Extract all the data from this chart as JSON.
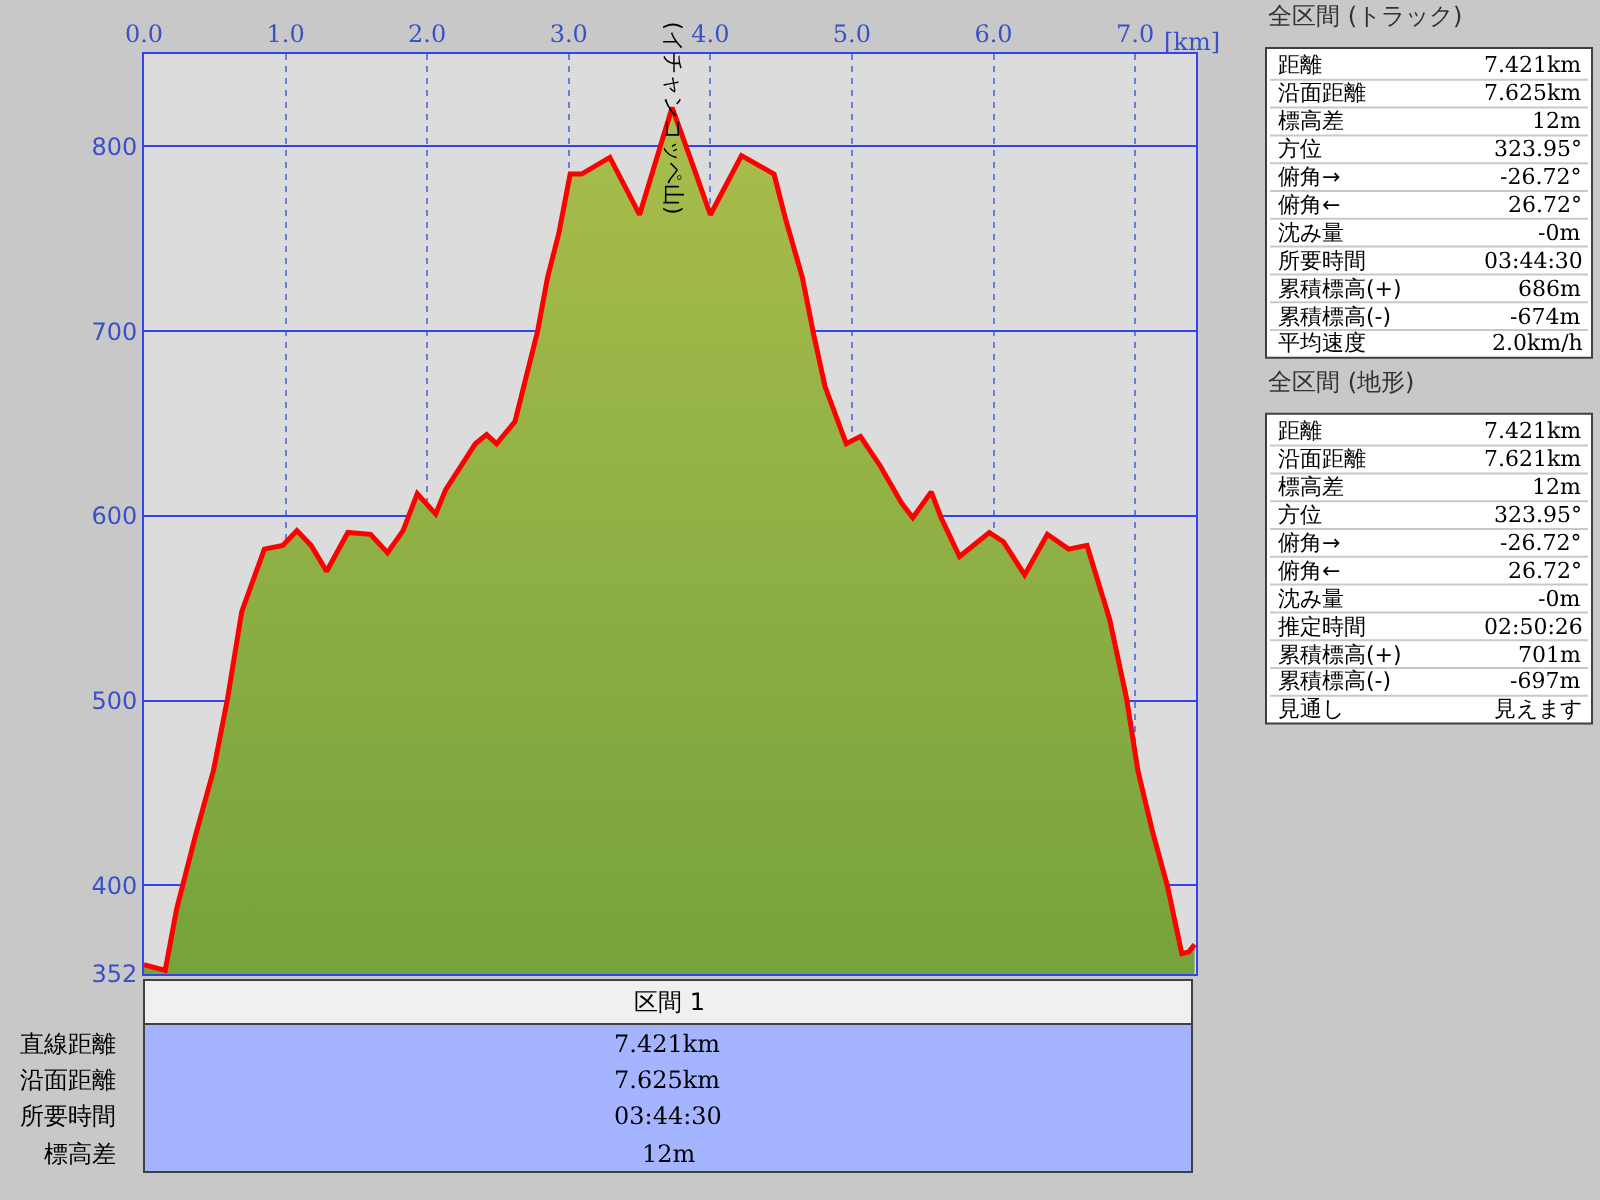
{
  "chart_data": [
    {
      "type": "area",
      "xlabel": "[km]",
      "x": [
        0,
        0.15,
        0.23,
        0.36,
        0.49,
        0.59,
        0.69,
        0.85,
        0.98,
        1.08,
        1.18,
        1.29,
        1.44,
        1.6,
        1.72,
        1.83,
        1.93,
        2.06,
        2.13,
        2.34,
        2.42,
        2.49,
        2.62,
        2.78,
        2.85,
        2.93,
        3.01,
        3.09,
        3.29,
        3.5,
        3.73,
        3.88,
        4.0,
        4.22,
        4.45,
        4.53,
        4.65,
        4.73,
        4.81,
        4.96,
        5.06,
        5.2,
        5.35,
        5.43,
        5.56,
        5.63,
        5.76,
        5.97,
        6.07,
        6.22,
        6.38,
        6.53,
        6.66,
        6.82,
        6.94,
        7.02,
        7.12,
        7.23,
        7.33,
        7.38,
        7.42
      ],
      "series": [
        {
          "color": "#ff0000",
          "values": [
            357,
            354,
            387,
            426,
            462,
            501,
            548,
            582,
            584,
            592,
            584,
            570,
            591,
            590,
            580,
            592,
            612,
            601,
            614,
            639,
            644,
            639,
            651,
            700,
            729,
            753,
            785,
            785,
            794,
            763,
            821,
            789,
            763,
            795,
            785,
            761,
            729,
            698,
            670,
            639,
            643,
            627,
            607,
            599,
            613,
            599,
            578,
            591,
            586,
            568,
            590,
            582,
            584,
            544,
            501,
            462,
            430,
            399,
            363,
            364,
            368
          ]
        }
      ],
      "xlim": [
        0,
        7.43
      ],
      "xticks": [
        {
          "value": 0,
          "label": "0.0"
        },
        {
          "value": 1,
          "label": "1.0"
        },
        {
          "value": 2,
          "label": "2.0"
        },
        {
          "value": 3,
          "label": "3.0"
        },
        {
          "value": 4,
          "label": "4.0"
        },
        {
          "value": 5,
          "label": "5.0"
        },
        {
          "value": 6,
          "label": "6.0"
        },
        {
          "value": 7,
          "label": "7.0"
        }
      ],
      "ylim": [
        352,
        850
      ],
      "yticks": [
        352,
        400,
        500,
        600,
        700,
        800
      ],
      "grid": true,
      "annotations": [
        {
          "text": "(イチャンコッペ山)",
          "x": 3.73,
          "y": 821
        }
      ]
    },
    {
      "type": "other",
      "title": "全区間 (トラック)",
      "annotations": [
        "距離",
        "7.421km",
        "沿面距離",
        "7.625km",
        "標高差",
        "12m",
        "方位",
        "323.95°",
        "俯角→",
        "-26.72°",
        "俯角←",
        "26.72°",
        "沈み量",
        "-0m",
        "所要時間",
        "03:44:30",
        "累積標高(+)",
        "686m",
        "累積標高(-)",
        "-674m",
        "平均速度",
        "2.0km/h"
      ]
    },
    {
      "type": "other",
      "title": "全区間 (地形)",
      "annotations": [
        "距離",
        "7.421km",
        "沿面距離",
        "7.621km",
        "標高差",
        "12m",
        "方位",
        "323.95°",
        "俯角→",
        "-26.72°",
        "俯角←",
        "26.72°",
        "沈み量",
        "-0m",
        "推定時間",
        "02:50:26",
        "累積標高(+)",
        "701m",
        "累積標高(-)",
        "-697m",
        "見通し",
        "見えます"
      ]
    },
    {
      "type": "other",
      "title": "区間 1",
      "annotations": [
        "直線距離",
        "7.421km",
        "沿面距離",
        "7.625km",
        "所要時間",
        "03:44:30",
        "標高差",
        "12m"
      ]
    }
  ]
}
